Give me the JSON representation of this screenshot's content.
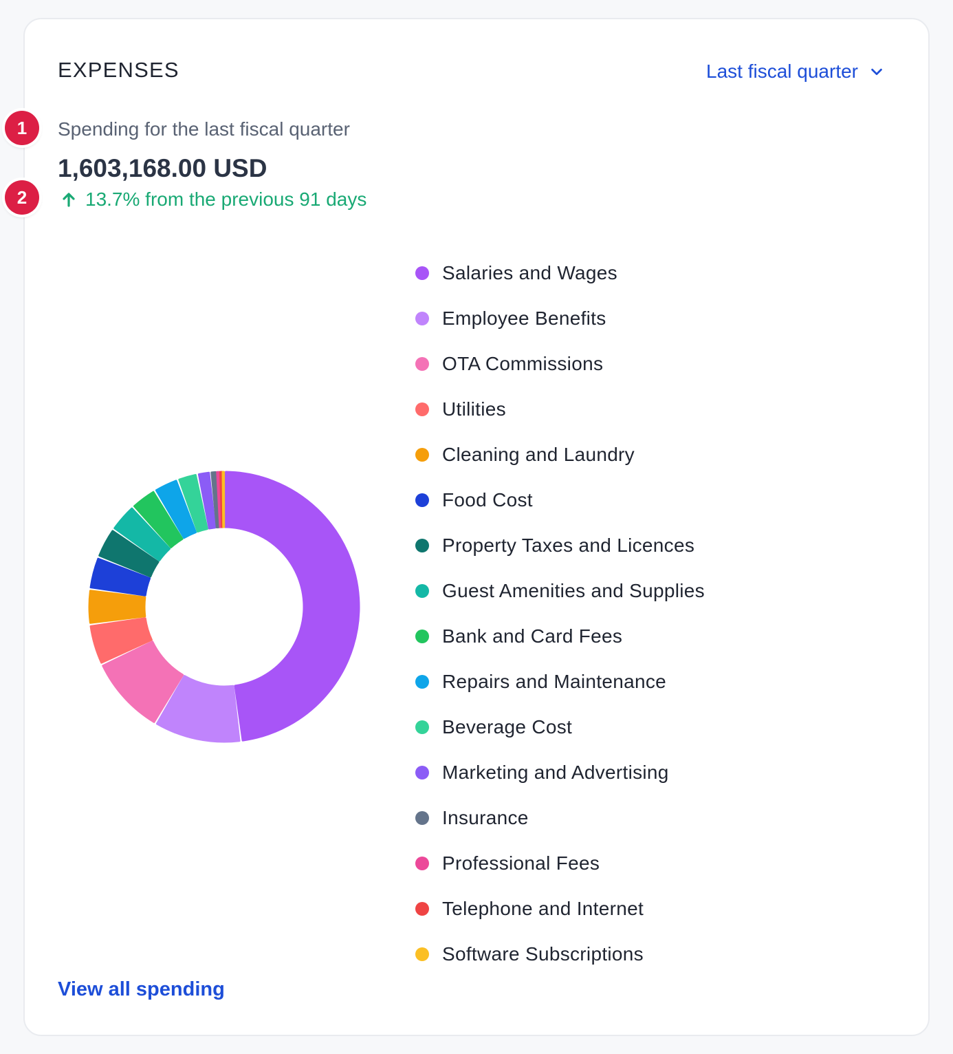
{
  "header": {
    "title": "EXPENSES",
    "range_label": "Last fiscal quarter"
  },
  "summary": {
    "subtitle": "Spending for the last fiscal quarter",
    "total": "1,603,168.00 USD",
    "change": "13.7% from the previous 91 days"
  },
  "markers": [
    "1",
    "2"
  ],
  "footer": {
    "link_label": "View all spending"
  },
  "chart_data": {
    "type": "pie",
    "categories": [
      "Salaries and Wages",
      "Employee Benefits",
      "OTA Commissions",
      "Utilities",
      "Cleaning and Laundry",
      "Food Cost",
      "Property Taxes and Licences",
      "Guest Amenities and Supplies",
      "Bank and Card Fees",
      "Repairs and Maintenance",
      "Beverage Cost",
      "Marketing and Advertising",
      "Insurance",
      "Professional Fees",
      "Telephone and Internet",
      "Software Subscriptions"
    ],
    "values": [
      48.0,
      10.5,
      9.5,
      4.9,
      4.2,
      3.9,
      3.7,
      3.5,
      3.2,
      3.0,
      2.4,
      1.6,
      0.7,
      0.4,
      0.3,
      0.2
    ],
    "colors": [
      "#a855f7",
      "#c084fc",
      "#f472b6",
      "#ff6b6b",
      "#f59e0b",
      "#1d40d8",
      "#0f766e",
      "#14b8a6",
      "#22c55e",
      "#0ea5e9",
      "#34d399",
      "#8b5cf6",
      "#64748b",
      "#ec4899",
      "#ef4444",
      "#fbbf24"
    ],
    "donut": true
  }
}
